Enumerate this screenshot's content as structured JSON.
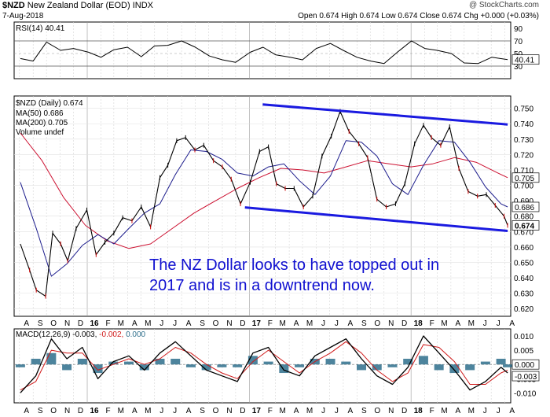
{
  "header": {
    "symbol": "$NZD",
    "name": "New Zealand Dollar (EOD)",
    "exchange": "INDX",
    "date": "7-Aug-2018",
    "credit": "@ StockCharts.com",
    "ohlc": "Open 0.674  High 0.674  Low 0.674  Close 0.674  Chg +0.000 (+0.03%)"
  },
  "annotation": "The NZ Dollar looks to have topped out in\n2017 and is in a downtrend now.",
  "colors": {
    "price": "#000000",
    "ma50": "#1c1c8c",
    "ma200": "#cc1030",
    "trendline": "#1a1ae0",
    "volume": "#2e6f8c"
  },
  "chart_data": [
    {
      "type": "line",
      "panel": "rsi",
      "legend": "RSI(14) 40.41",
      "ylim": [
        10,
        100
      ],
      "y_ticks": [
        90,
        70,
        50,
        30
      ],
      "reference_lines": [
        70,
        30
      ],
      "last_value": "40.41",
      "x": [
        "2015-08-03",
        "2015-09-01",
        "2015-10-01",
        "2015-11-02",
        "2015-12-01",
        "2016-01-04",
        "2016-02-01",
        "2016-03-01",
        "2016-04-01",
        "2016-05-02",
        "2016-06-01",
        "2016-07-01",
        "2016-08-01",
        "2016-09-01",
        "2016-10-03",
        "2016-11-01",
        "2016-12-01",
        "2017-01-03",
        "2017-02-01",
        "2017-03-01",
        "2017-04-03",
        "2017-05-01",
        "2017-06-01",
        "2017-07-03",
        "2017-08-01",
        "2017-09-01",
        "2017-10-02",
        "2017-11-01",
        "2017-12-01",
        "2018-01-02",
        "2018-02-01",
        "2018-03-01",
        "2018-04-02",
        "2018-05-01",
        "2018-06-01",
        "2018-07-02",
        "2018-08-07"
      ],
      "values": [
        42,
        38,
        68,
        55,
        58,
        52,
        44,
        56,
        60,
        45,
        62,
        63,
        70,
        60,
        46,
        40,
        36,
        52,
        60,
        48,
        44,
        40,
        58,
        66,
        55,
        44,
        38,
        34,
        52,
        70,
        58,
        55,
        50,
        35,
        34,
        44,
        40.41
      ]
    },
    {
      "type": "line",
      "panel": "price",
      "title": "$NZD New Zealand Dollar (EOD) INDX",
      "ylim": [
        0.615,
        0.758
      ],
      "y_ticks": [
        0.75,
        0.74,
        0.73,
        0.72,
        0.71,
        0.7,
        0.69,
        0.68,
        0.67,
        0.66,
        0.65,
        0.64,
        0.63,
        0.62
      ],
      "x_tick_labels": [
        "A",
        "S",
        "O",
        "N",
        "D",
        "16",
        "F",
        "M",
        "A",
        "M",
        "J",
        "J",
        "A",
        "S",
        "O",
        "N",
        "D",
        "17",
        "F",
        "M",
        "A",
        "M",
        "J",
        "J",
        "A",
        "S",
        "O",
        "N",
        "D",
        "18",
        "F",
        "M",
        "A",
        "M",
        "J",
        "J",
        "A"
      ],
      "grid": true,
      "legend_position": "top-left",
      "series": [
        {
          "name": "$NZD (Daily) 0.674",
          "x": [
            "2015-08-03",
            "2015-08-24",
            "2015-09-08",
            "2015-09-29",
            "2015-10-15",
            "2015-11-02",
            "2015-11-18",
            "2015-12-07",
            "2015-12-31",
            "2016-01-21",
            "2016-02-10",
            "2016-03-01",
            "2016-03-21",
            "2016-04-11",
            "2016-05-02",
            "2016-05-23",
            "2016-06-13",
            "2016-07-01",
            "2016-07-21",
            "2016-08-10",
            "2016-08-31",
            "2016-09-20",
            "2016-10-12",
            "2016-11-01",
            "2016-11-21",
            "2016-12-12",
            "2017-01-03",
            "2017-01-24",
            "2017-02-13",
            "2017-03-03",
            "2017-03-23",
            "2017-04-12",
            "2017-05-03",
            "2017-05-24",
            "2017-06-14",
            "2017-07-05",
            "2017-07-25",
            "2017-08-14",
            "2017-09-05",
            "2017-09-25",
            "2017-10-16",
            "2017-11-06",
            "2017-11-27",
            "2017-12-18",
            "2018-01-09",
            "2018-01-29",
            "2018-02-16",
            "2018-03-09",
            "2018-03-29",
            "2018-04-19",
            "2018-05-10",
            "2018-05-31",
            "2018-06-20",
            "2018-07-10",
            "2018-07-30",
            "2018-08-07"
          ],
          "values": [
            0.662,
            0.645,
            0.632,
            0.628,
            0.669,
            0.662,
            0.651,
            0.672,
            0.684,
            0.655,
            0.663,
            0.669,
            0.679,
            0.677,
            0.686,
            0.673,
            0.705,
            0.713,
            0.729,
            0.731,
            0.723,
            0.726,
            0.716,
            0.712,
            0.704,
            0.688,
            0.702,
            0.722,
            0.725,
            0.701,
            0.698,
            0.698,
            0.686,
            0.693,
            0.719,
            0.732,
            0.748,
            0.735,
            0.727,
            0.718,
            0.691,
            0.686,
            0.688,
            0.701,
            0.727,
            0.739,
            0.731,
            0.726,
            0.738,
            0.711,
            0.696,
            0.693,
            0.694,
            0.687,
            0.68,
            0.674
          ]
        },
        {
          "name": "MA(50) 0.686",
          "x": [
            "2015-08-03",
            "2015-09-08",
            "2015-10-12",
            "2015-11-16",
            "2015-12-21",
            "2016-01-25",
            "2016-03-01",
            "2016-04-04",
            "2016-05-09",
            "2016-06-13",
            "2016-07-18",
            "2016-08-22",
            "2016-09-26",
            "2016-10-31",
            "2016-12-05",
            "2017-01-09",
            "2017-02-13",
            "2017-03-20",
            "2017-04-24",
            "2017-05-29",
            "2017-07-03",
            "2017-08-07",
            "2017-09-11",
            "2017-10-16",
            "2017-11-20",
            "2017-12-25",
            "2018-01-29",
            "2018-03-05",
            "2018-04-09",
            "2018-05-14",
            "2018-06-18",
            "2018-07-23",
            "2018-08-07"
          ],
          "values": [
            0.702,
            0.672,
            0.641,
            0.649,
            0.661,
            0.668,
            0.662,
            0.672,
            0.682,
            0.688,
            0.707,
            0.723,
            0.722,
            0.717,
            0.708,
            0.706,
            0.712,
            0.714,
            0.703,
            0.694,
            0.706,
            0.729,
            0.728,
            0.719,
            0.701,
            0.694,
            0.713,
            0.729,
            0.728,
            0.715,
            0.699,
            0.688,
            0.686
          ]
        },
        {
          "name": "MA(200) 0.705",
          "x": [
            "2015-08-03",
            "2015-09-21",
            "2015-11-09",
            "2015-12-28",
            "2016-02-15",
            "2016-04-04",
            "2016-05-23",
            "2016-07-11",
            "2016-08-29",
            "2016-10-17",
            "2016-12-05",
            "2017-01-23",
            "2017-03-13",
            "2017-05-01",
            "2017-06-19",
            "2017-08-07",
            "2017-09-25",
            "2017-11-13",
            "2018-01-01",
            "2018-02-19",
            "2018-04-09",
            "2018-05-28",
            "2018-07-16",
            "2018-08-07"
          ],
          "values": [
            0.734,
            0.716,
            0.692,
            0.674,
            0.664,
            0.659,
            0.662,
            0.672,
            0.682,
            0.69,
            0.698,
            0.705,
            0.711,
            0.71,
            0.708,
            0.712,
            0.716,
            0.714,
            0.712,
            0.714,
            0.718,
            0.715,
            0.708,
            0.705
          ]
        }
      ],
      "volume_legend": "Volume undef",
      "trend_channel": {
        "upper": {
          "x": [
            "2017-01-31",
            "2018-08-07"
          ],
          "values": [
            0.7525,
            0.7395
          ]
        },
        "lower": {
          "x": [
            "2016-12-22",
            "2018-08-07"
          ],
          "values": [
            0.6857,
            0.6704
          ]
        }
      },
      "last_value_labels": [
        "0.705",
        "0.686",
        "0.674"
      ]
    },
    {
      "type": "line",
      "panel": "macd",
      "legend": "MACD(12,26,9) -0.003, -0.002, 0.000",
      "legend_parts": {
        "label": "MACD(12,26,9)",
        "macd": "-0.003,",
        "signal": "-0.002,",
        "histogram": "0.000"
      },
      "ylim": [
        -0.0135,
        0.0125
      ],
      "y_ticks": [
        0.01,
        0.005,
        -0.005,
        -0.01
      ],
      "last_value_labels": [
        "0.000",
        "-0.003"
      ],
      "series": [
        {
          "name": "MACD(12,26,9)",
          "x": [
            "2015-08-03",
            "2015-09-07",
            "2015-10-12",
            "2015-11-16",
            "2015-12-21",
            "2016-01-25",
            "2016-02-29",
            "2016-04-04",
            "2016-05-09",
            "2016-06-13",
            "2016-07-18",
            "2016-08-22",
            "2016-09-26",
            "2016-10-31",
            "2016-12-05",
            "2017-01-09",
            "2017-02-13",
            "2017-03-20",
            "2017-04-24",
            "2017-05-29",
            "2017-07-03",
            "2017-08-07",
            "2017-09-11",
            "2017-10-16",
            "2017-11-20",
            "2017-12-25",
            "2018-01-29",
            "2018-03-05",
            "2018-04-09",
            "2018-05-14",
            "2018-06-18",
            "2018-07-23",
            "2018-08-07"
          ],
          "values": [
            -0.01,
            -0.004,
            0.009,
            0.002,
            0.006,
            -0.005,
            0.001,
            0.003,
            -0.002,
            0.004,
            0.008,
            0.003,
            -0.002,
            -0.004,
            -0.006,
            0.004,
            0.006,
            -0.002,
            -0.004,
            0.003,
            0.006,
            0.009,
            0.002,
            -0.004,
            -0.007,
            -0.001,
            0.01,
            0.004,
            -0.002,
            -0.009,
            -0.006,
            -0.001,
            -0.003
          ]
        },
        {
          "name": "Signal",
          "x": [
            "2015-08-03",
            "2015-09-07",
            "2015-10-12",
            "2015-11-16",
            "2015-12-21",
            "2016-01-25",
            "2016-02-29",
            "2016-04-04",
            "2016-05-09",
            "2016-06-13",
            "2016-07-18",
            "2016-08-22",
            "2016-09-26",
            "2016-10-31",
            "2016-12-05",
            "2017-01-09",
            "2017-02-13",
            "2017-03-20",
            "2017-04-24",
            "2017-05-29",
            "2017-07-03",
            "2017-08-07",
            "2017-09-11",
            "2017-10-16",
            "2017-11-20",
            "2017-12-25",
            "2018-01-29",
            "2018-03-05",
            "2018-04-09",
            "2018-05-14",
            "2018-06-18",
            "2018-07-23",
            "2018-08-07"
          ],
          "values": [
            -0.009,
            -0.006,
            0.005,
            0.004,
            0.004,
            -0.002,
            0.0,
            0.002,
            0.0,
            0.002,
            0.006,
            0.004,
            0.0,
            -0.003,
            -0.005,
            0.001,
            0.005,
            0.001,
            -0.003,
            0.001,
            0.004,
            0.008,
            0.004,
            -0.002,
            -0.006,
            -0.003,
            0.007,
            0.006,
            0.001,
            -0.007,
            -0.007,
            -0.003,
            -0.002
          ]
        }
      ]
    }
  ]
}
